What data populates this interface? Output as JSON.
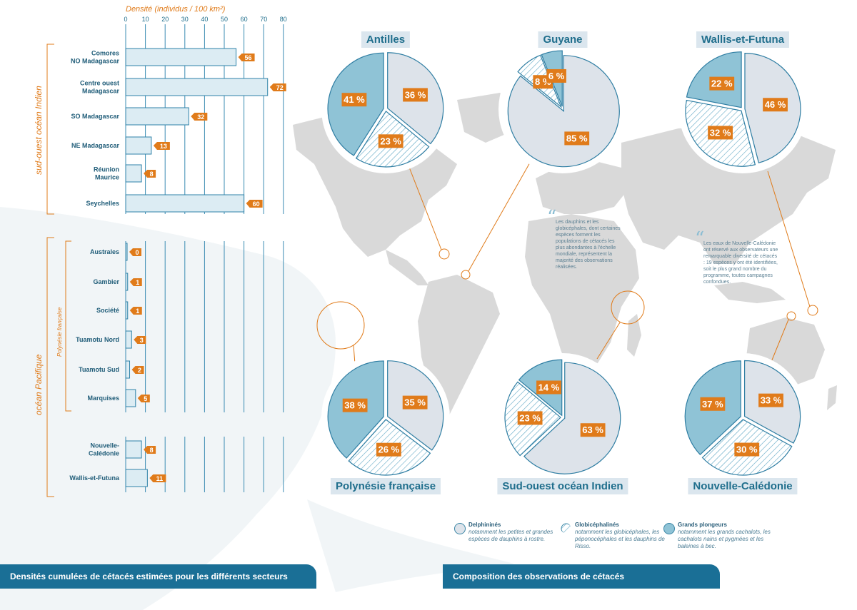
{
  "bar_chart": {
    "axis_title": "Densité (individus / 100 km²)",
    "sections": [
      {
        "label": "sud-ouest océan Indien"
      },
      {
        "label": "océan Pacifique"
      },
      {
        "label": "Polynésie française"
      }
    ],
    "footer_title": "Densités cumulées de cétacés estimées pour les différents secteurs"
  },
  "pie_panel": {
    "footer_title": "Composition des observations de cétacés",
    "quotes": [
      {
        "text": "Les dauphins et les globicéphales, dont certaines espèces forment les populations de cétacés les plus abondantes à l'échelle mondiale, représentent la majorité des observations réalisées."
      },
      {
        "text": "Les eaux de Nouvelle-Calédonie ont réservé aux observateurs une remarquable diversité de cétacés : 19 espèces y ont été identifiées, soit le plus grand nombre du programme, toutes campagnes confondues."
      }
    ],
    "legend": [
      {
        "title": "Delphininés",
        "desc": "notamment les petites et grandes espèces de dauphins à rostre.",
        "icon": "plain-circle-icon"
      },
      {
        "title": "Globicéphalinés",
        "desc": "notamment les globicéphales, les péponocéphales et les dauphins de Risso.",
        "icon": "hatched-circle-icon"
      },
      {
        "title": "Grands plongeurs",
        "desc": "notamment les grands cachalots, les cachalots nains et pygmées et les baleines à bec.",
        "icon": "filled-circle-icon"
      }
    ]
  },
  "colors": {
    "bar_fill": "#dcecf3",
    "bar_stroke": "#2e82a8",
    "accent_orange": "#e07b1a",
    "delphinines": "#dde3ea",
    "globicephalines": "#ffffff",
    "grands_plongeurs": "#8fc3d6",
    "map_gray": "#d9d9d9",
    "footer_blue": "#1a6f96"
  },
  "chart_data": [
    {
      "type": "bar",
      "orientation": "horizontal",
      "title": "Densités cumulées de cétacés estimées pour les différents secteurs",
      "xlabel": "Densité (individus / 100 km²)",
      "xlim": [
        0,
        80
      ],
      "xticks": [
        0,
        10,
        20,
        30,
        40,
        50,
        60,
        70,
        80
      ],
      "categories": [
        "Comores NO Madagascar",
        "Centre ouest Madagascar",
        "SO Madagascar",
        "NE Madagascar",
        "Réunion Maurice",
        "Seychelles",
        "Australes",
        "Gambier",
        "Société",
        "Tuamotu Nord",
        "Tuamotu Sud",
        "Marquises",
        "Nouvelle-Calédonie",
        "Wallis-et-Futuna"
      ],
      "category_lines": [
        [
          "Comores",
          "NO Madagascar"
        ],
        [
          "Centre ouest",
          "Madagascar"
        ],
        [
          "SO Madagascar"
        ],
        [
          "NE Madagascar"
        ],
        [
          "Réunion",
          "Maurice"
        ],
        [
          "Seychelles"
        ],
        [
          "Australes"
        ],
        [
          "Gambier"
        ],
        [
          "Société"
        ],
        [
          "Tuamotu Nord"
        ],
        [
          "Tuamotu Sud"
        ],
        [
          "Marquises"
        ],
        [
          "Nouvelle-",
          "Calédonie"
        ],
        [
          "Wallis-et-Futuna"
        ]
      ],
      "values": [
        56,
        72,
        32,
        13,
        8,
        60,
        0,
        1,
        1,
        3,
        2,
        5,
        8,
        11
      ],
      "data_labels": [
        "56",
        "72",
        "32",
        "13",
        "8",
        "60",
        "0",
        "1",
        "1",
        "3",
        "2",
        "5",
        "8",
        "11"
      ]
    },
    {
      "type": "pie",
      "title": "Composition des observations de cétacés",
      "series_categories": [
        "Delphininés",
        "Globicéphalinés",
        "Grands plongeurs"
      ],
      "pies": [
        {
          "name": "Antilles",
          "values": [
            36,
            23,
            41
          ],
          "labels": [
            "36 %",
            "23 %",
            "41 %"
          ]
        },
        {
          "name": "Guyane",
          "values": [
            85,
            8,
            6
          ],
          "labels": [
            "85 %",
            "8 %",
            "6 %"
          ]
        },
        {
          "name": "Wallis-et-Futuna",
          "values": [
            46,
            32,
            22
          ],
          "labels": [
            "46 %",
            "32 %",
            "22 %"
          ]
        },
        {
          "name": "Polynésie française",
          "values": [
            35,
            26,
            38
          ],
          "labels": [
            "35 %",
            "26 %",
            "38 %"
          ]
        },
        {
          "name": "Sud-ouest océan Indien",
          "values": [
            63,
            23,
            14
          ],
          "labels": [
            "63 %",
            "23 %",
            "14 %"
          ]
        },
        {
          "name": "Nouvelle-Calédonie",
          "values": [
            33,
            30,
            37
          ],
          "labels": [
            "33 %",
            "30 %",
            "37 %"
          ]
        }
      ]
    }
  ]
}
